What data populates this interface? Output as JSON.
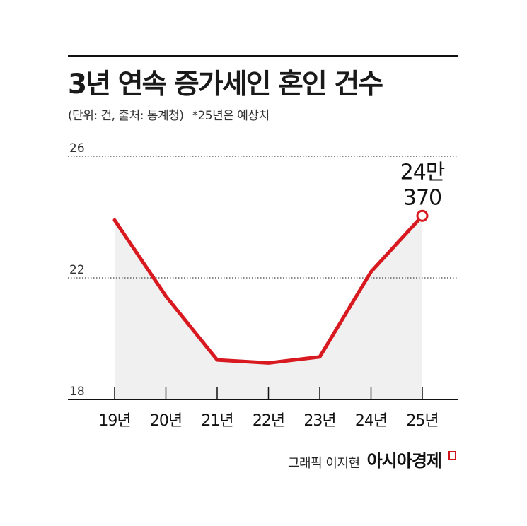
{
  "header": {
    "title": "3년 연속 증가세인 혼인 건수",
    "subtitle": "(단위: 건, 출처: 통계청)",
    "note": "*25년은 예상치"
  },
  "chart_data": {
    "type": "area",
    "x": [
      "19년",
      "20년",
      "21년",
      "22년",
      "23년",
      "24년",
      "25년"
    ],
    "categories": [
      "19년",
      "20년",
      "21년",
      "22년",
      "23년",
      "24년",
      "25년"
    ],
    "series": [
      {
        "values": [
          23.9,
          21.4,
          19.3,
          19.2,
          19.4,
          22.2,
          24.04
        ]
      }
    ],
    "yticks": [
      18,
      22,
      26
    ],
    "ylim": [
      18,
      26
    ],
    "annotation": {
      "index": 6,
      "line1": "24만",
      "line2": "370"
    },
    "line_color": "#d81920",
    "fill_color": "#f0f0f0",
    "grid": "dotted"
  },
  "credit": {
    "author": "그래픽 이지현",
    "brand": "아시아경제",
    "brand_color": "#d0121b"
  }
}
